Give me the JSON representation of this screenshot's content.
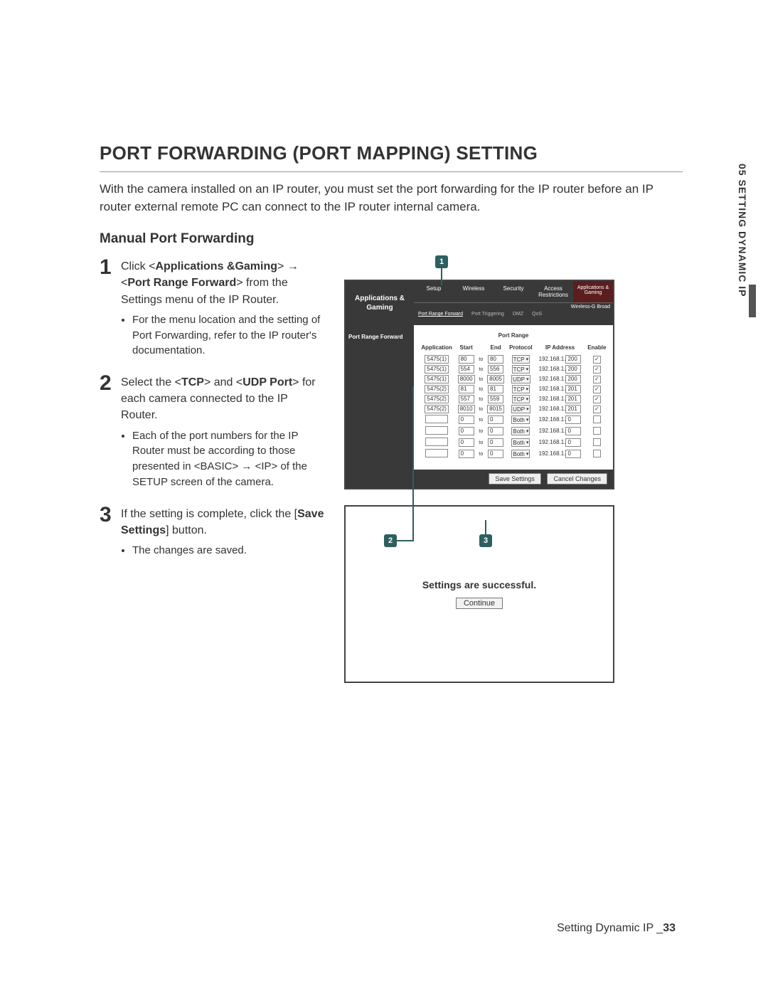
{
  "sideTab": {
    "text": "05  SETTING DYNAMIC IP"
  },
  "title": "PORT FORWARDING (PORT MAPPING) SETTING",
  "intro": "With the camera installed on an IP router, you must set the port forwarding for the IP router before an IP router external remote PC can connect to the IP router internal camera.",
  "subheading": "Manual Port Forwarding",
  "steps": [
    {
      "num": "1",
      "body_pre": "Click <",
      "body_b1": "Applications &Gaming",
      "body_mid1": "> → <",
      "body_b2": "Port Range Forward",
      "body_post": "> from the Settings menu of the IP Router.",
      "bullets": [
        "For the menu location and the setting of Port Forwarding, refer to the IP router's documentation."
      ]
    },
    {
      "num": "2",
      "body_pre": "Select the <",
      "body_b1": "TCP",
      "body_mid1": "> and <",
      "body_b2": "UDP Port",
      "body_post": "> for each camera connected to the IP Router.",
      "bullets": [
        "Each of the port numbers for the IP Router must be according to those presented in <BASIC> → <IP> of the SETUP screen of the camera."
      ]
    },
    {
      "num": "3",
      "body_pre": "If the setting is complete, click the [",
      "body_b1": "Save Settings",
      "body_mid1": "] button.",
      "body_b2": "",
      "body_post": "",
      "bullets": [
        "The changes are saved."
      ]
    }
  ],
  "router": {
    "titleLeft": "Applications & Gaming",
    "brand": "Wireless-G Broad",
    "tabs": [
      "Setup",
      "Wireless",
      "Security",
      "Access Restrictions",
      "Applications & Gaming"
    ],
    "subtabs": [
      "Port Range Forward",
      "Port Triggering",
      "DMZ",
      "QoS"
    ],
    "sectionLabel": "Port Range Forward",
    "tableHeader": "Port Range",
    "cols": [
      "Application",
      "Start",
      "",
      "End",
      "Protocol",
      "IP Address",
      "Enable"
    ],
    "ip_prefix": "192.168.1.",
    "rows": [
      {
        "app": "5475(1)",
        "start": "80",
        "end": "80",
        "proto": "TCP",
        "ip": "200",
        "en": true
      },
      {
        "app": "5475(1)",
        "start": "554",
        "end": "556",
        "proto": "TCP",
        "ip": "200",
        "en": true
      },
      {
        "app": "5475(1)",
        "start": "8000",
        "end": "8005",
        "proto": "UDP",
        "ip": "200",
        "en": true
      },
      {
        "app": "5475(2)",
        "start": "81",
        "end": "81",
        "proto": "TCP",
        "ip": "201",
        "en": true
      },
      {
        "app": "5475(2)",
        "start": "557",
        "end": "559",
        "proto": "TCP",
        "ip": "201",
        "en": true
      },
      {
        "app": "5475(2)",
        "start": "8010",
        "end": "8015",
        "proto": "UDP",
        "ip": "201",
        "en": true
      },
      {
        "app": "",
        "start": "0",
        "end": "0",
        "proto": "Both",
        "ip": "0",
        "en": false
      },
      {
        "app": "",
        "start": "0",
        "end": "0",
        "proto": "Both",
        "ip": "0",
        "en": false
      },
      {
        "app": "",
        "start": "0",
        "end": "0",
        "proto": "Both",
        "ip": "0",
        "en": false
      },
      {
        "app": "",
        "start": "0",
        "end": "0",
        "proto": "Both",
        "ip": "0",
        "en": false
      }
    ],
    "to_label": "to",
    "save": "Save Settings",
    "cancel": "Cancel Changes"
  },
  "success": {
    "msg": "Settings are successful.",
    "btn": "Continue"
  },
  "callouts": {
    "c1": "1",
    "c2": "2",
    "c3": "3"
  },
  "footer": {
    "section": "Setting Dynamic IP _",
    "page": "33"
  },
  "colors": {
    "header_bg": "#393939",
    "active_tab_bg": "#6b6b6b",
    "brand_tab_bg": "#5b1e1e",
    "callout_bg": "#2d5f5f",
    "border": "#444444"
  }
}
